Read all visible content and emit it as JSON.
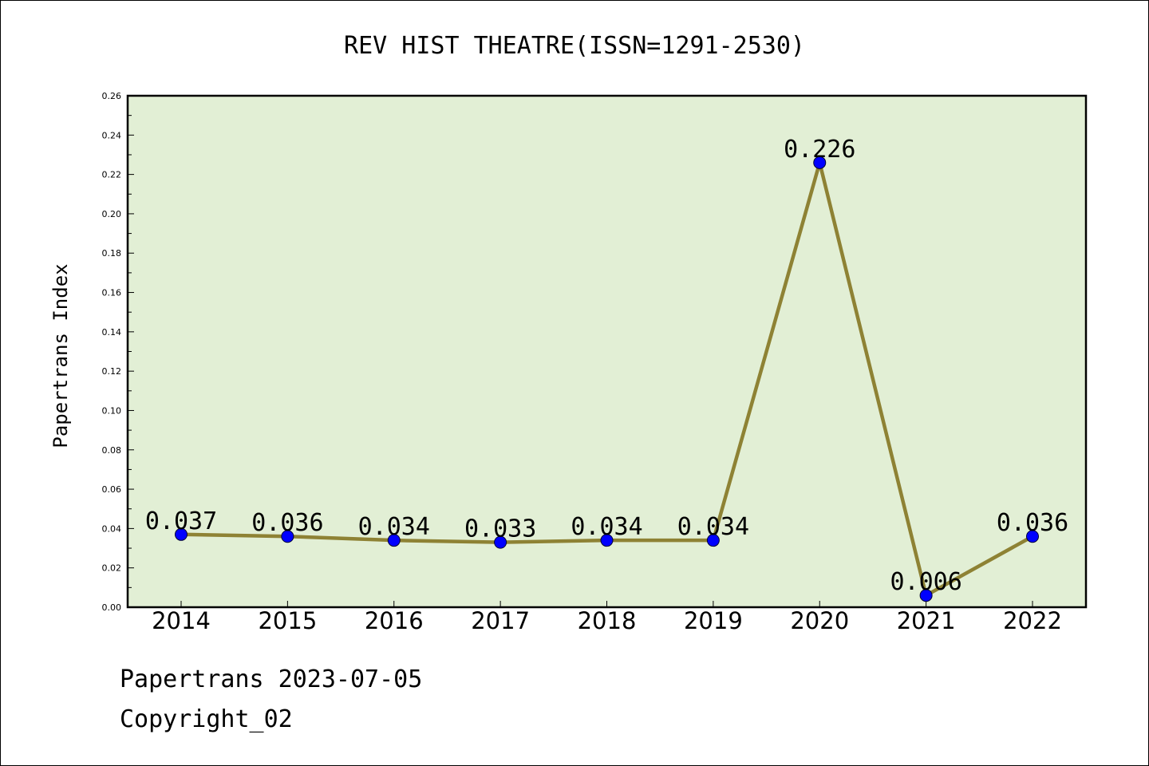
{
  "footer": {
    "line1": "Papertrans 2023-07-05",
    "line2": "Copyright_02"
  },
  "chart_data": {
    "type": "line",
    "title": "REV HIST THEATRE(ISSN=1291-2530)",
    "ylabel": "Papertrans Index",
    "xlabel": "",
    "categories": [
      "2014",
      "2015",
      "2016",
      "2017",
      "2018",
      "2019",
      "2020",
      "2021",
      "2022"
    ],
    "values": [
      0.037,
      0.036,
      0.034,
      0.033,
      0.034,
      0.034,
      0.226,
      0.006,
      0.036
    ],
    "data_labels": [
      "0.037",
      "0.036",
      "0.034",
      "0.033",
      "0.034",
      "0.034",
      "0.226",
      "0.006",
      "0.036"
    ],
    "ylim": [
      0,
      0.26
    ],
    "yticks": [
      "0.00",
      "0.02",
      "0.04",
      "0.06",
      "0.08",
      "0.10",
      "0.12",
      "0.14",
      "0.16",
      "0.18",
      "0.20",
      "0.22",
      "0.24",
      "0.26"
    ],
    "grid": false,
    "colors": {
      "plot_background": "#e2efd5",
      "line": "#8e8234",
      "marker": "#0000ff"
    }
  }
}
